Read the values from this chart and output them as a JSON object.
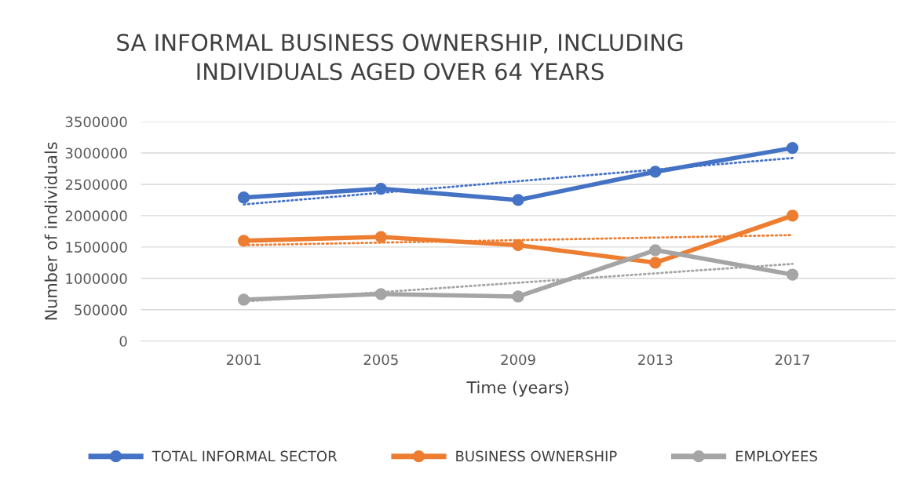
{
  "chart_data": {
    "type": "line",
    "title": "SA INFORMAL BUSINESS OWNERSHIP, INCLUDING\nINDIVIDUALS AGED OVER 64 YEARS",
    "xlabel": "Time (years)",
    "ylabel": "Number of individuals",
    "categories": [
      "2001",
      "2005",
      "2009",
      "2013",
      "2017"
    ],
    "series": [
      {
        "name": "TOTAL INFORMAL SECTOR",
        "color": "#4472c4",
        "values": [
          2290000,
          2430000,
          2250000,
          2700000,
          3080000
        ],
        "marker": "circle",
        "line_style": "solid"
      },
      {
        "name": "BUSINESS OWNERSHIP",
        "color": "#ed7d31",
        "values": [
          1600000,
          1660000,
          1530000,
          1250000,
          2000000
        ],
        "marker": "circle",
        "line_style": "solid"
      },
      {
        "name": "EMPLOYEES",
        "color": "#a5a5a5",
        "values": [
          660000,
          750000,
          710000,
          1450000,
          1060000
        ],
        "marker": "circle",
        "line_style": "solid"
      },
      {
        "color": "#4472c4",
        "values": [
          2180000,
          2365000,
          2550000,
          2735000,
          2920000
        ],
        "marker": "none",
        "line_style": "dotted"
      },
      {
        "color": "#ed7d31",
        "values": [
          1530000,
          1570000,
          1610000,
          1650000,
          1690000
        ],
        "marker": "none",
        "line_style": "dotted"
      },
      {
        "color": "#a5a5a5",
        "values": [
          630000,
          780000,
          930000,
          1080000,
          1230000
        ],
        "marker": "none",
        "line_style": "dotted"
      }
    ],
    "ylim": [
      0,
      3500000
    ],
    "yticks": [
      0,
      500000,
      1000000,
      1500000,
      2000000,
      2500000,
      3000000,
      3500000
    ],
    "grid": "y",
    "legend": "bottom"
  }
}
